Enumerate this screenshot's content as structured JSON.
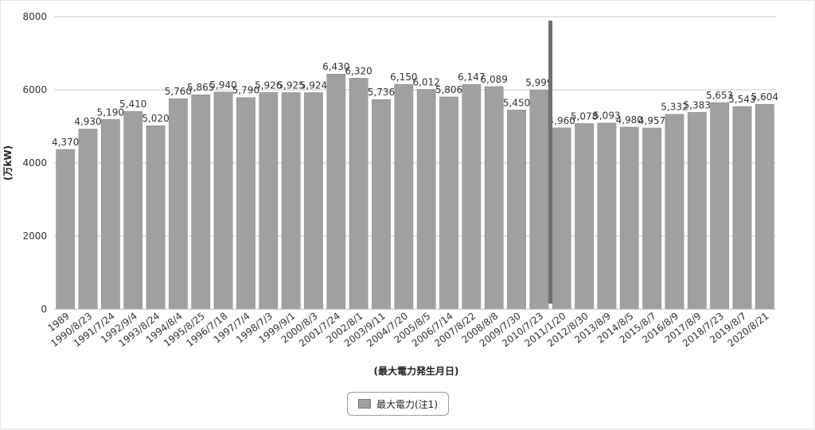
{
  "chart_data": {
    "type": "bar",
    "xlabel": "(最大電力発生月日)",
    "ylabel": "(万kW)",
    "ylim": [
      0,
      8000
    ],
    "y_ticks": [
      0,
      2000,
      4000,
      6000,
      8000
    ],
    "grid": true,
    "legend_position": "bottom-center",
    "categories": [
      "1989",
      "1990/8/23",
      "1991/7/24",
      "1992/9/4",
      "1993/8/24",
      "1994/8/4",
      "1995/8/25",
      "1996/7/18",
      "1997/7/4",
      "1998/7/3",
      "1999/9/1",
      "2000/8/3",
      "2001/7/24",
      "2002/8/1",
      "2003/9/11",
      "2004/7/20",
      "2005/8/5",
      "2006/7/14",
      "2007/8/22",
      "2008/8/8",
      "2009/7/30",
      "2010/7/23",
      "2011/1/20",
      "2012/8/30",
      "2013/8/9",
      "2014/8/5",
      "2015/8/7",
      "2016/8/9",
      "2017/8/9",
      "2018/7/23",
      "2019/8/7",
      "2020/8/21"
    ],
    "series": [
      {
        "name": "最大電力(注1)",
        "values": [
          4370,
          4930,
          5190,
          5410,
          5020,
          5760,
          5865,
          5940,
          5790,
          5926,
          5925,
          5924,
          6430,
          6320,
          5736,
          6150,
          6012,
          5806,
          6147,
          6089,
          5450,
          5999,
          4960,
          5078,
          5093,
          4980,
          4957,
          5332,
          5383,
          5653,
          5543,
          5604
        ],
        "labels": [
          "4,370",
          "4,930",
          "5,190",
          "5,410",
          "5,020",
          "5,760",
          "5,865",
          "5,940",
          "5,790",
          "5,926",
          "5,925",
          "5,924",
          "6,430",
          "6,320",
          "5,736",
          "6,150",
          "6,012",
          "5,806",
          "6,147",
          "6,089",
          "5,450",
          "5,999",
          "4,960",
          "5,078",
          "5,093",
          "4,980",
          "4,957",
          "5,332",
          "5,383",
          "5,653",
          "5,543",
          "5,604"
        ]
      }
    ],
    "colors": {
      "bar": "#a0a0a0",
      "bar_edge": "#8a8a8a",
      "divider": "#6f6f6f",
      "grid": "#c8c8c8"
    },
    "divider_after_category": "2010/7/23"
  }
}
